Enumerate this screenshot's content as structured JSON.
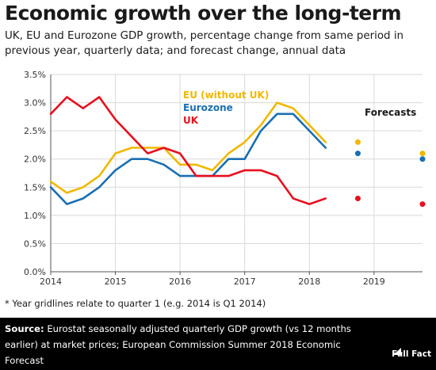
{
  "chart_data": {
    "type": "line",
    "title": "Economic growth over the long-term",
    "subtitle": "UK, EU and Eurozone GDP growth, percentage change from same period in previous year, quarterly data; and forecast change, annual data",
    "ylim": [
      0,
      3.5
    ],
    "yticks": [
      "0.0%",
      "0.5%",
      "1.0%",
      "1.5%",
      "2.0%",
      "2.5%",
      "3.0%",
      "3.5%"
    ],
    "xlim": [
      2014,
      2019.75
    ],
    "xticks": [
      "2014",
      "2015",
      "2016",
      "2017",
      "2018",
      "2019"
    ],
    "grid": {
      "horizontal": true,
      "vertical": true
    },
    "legend_placement": "top-center",
    "forecasts_label": "Forecasts",
    "x": [
      2014.0,
      2014.25,
      2014.5,
      2014.75,
      2015.0,
      2015.25,
      2015.5,
      2015.75,
      2016.0,
      2016.25,
      2016.5,
      2016.75,
      2017.0,
      2017.25,
      2017.5,
      2017.75,
      2018.0,
      2018.25
    ],
    "series": [
      {
        "name": "EU (without UK)",
        "color": "#f0b800",
        "values": [
          1.6,
          1.4,
          1.5,
          1.7,
          2.1,
          2.2,
          2.2,
          2.2,
          1.9,
          1.9,
          1.8,
          2.1,
          2.3,
          2.6,
          3.0,
          2.9,
          2.6,
          2.3
        ],
        "forecast_x": [
          2018.75,
          2019.75
        ],
        "forecast_values": [
          2.3,
          2.1
        ]
      },
      {
        "name": "Eurozone",
        "color": "#1a6fb3",
        "values": [
          1.5,
          1.2,
          1.3,
          1.5,
          1.8,
          2.0,
          2.0,
          1.9,
          1.7,
          1.7,
          1.7,
          2.0,
          2.0,
          2.5,
          2.8,
          2.8,
          2.5,
          2.2
        ],
        "forecast_x": [
          2018.75,
          2019.75
        ],
        "forecast_values": [
          2.1,
          2.0
        ]
      },
      {
        "name": "UK",
        "color": "#e8101e",
        "values": [
          2.8,
          3.1,
          2.9,
          3.1,
          2.7,
          2.4,
          2.1,
          2.2,
          2.1,
          1.7,
          1.7,
          1.7,
          1.8,
          1.8,
          1.7,
          1.3,
          1.2,
          1.3
        ],
        "forecast_x": [
          2018.75,
          2019.75
        ],
        "forecast_values": [
          1.3,
          1.2
        ]
      }
    ]
  },
  "footnote": "* Year gridlines relate to quarter 1 (e.g. 2014 is Q1 2014)",
  "footer": {
    "source_label": "Source:",
    "source_text": " Eurostat seasonally adjusted quarterly GDP growth (vs 12 months earlier) at market prices; European Commission Summer 2018 Economic Forecast",
    "brand": "Full Fact"
  }
}
